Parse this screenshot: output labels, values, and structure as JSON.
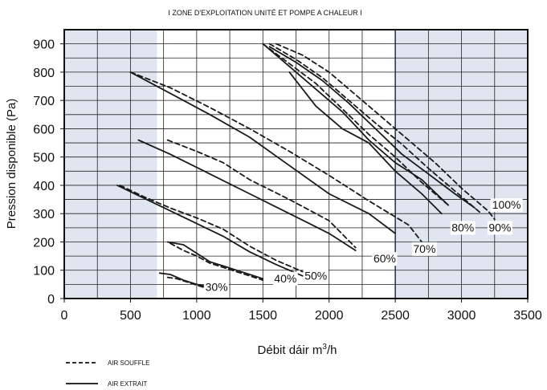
{
  "chart_data": {
    "type": "line",
    "title": "I ZONE D'EXPLOITATION UNITÉ ET POMPE A CHALEUR  I",
    "xlabel": "Débit dáir m³/h",
    "ylabel": "Pression disponible (Pa)",
    "xlim": [
      0,
      3500
    ],
    "ylim": [
      0,
      950
    ],
    "xticks": [
      "0",
      "500",
      "1000",
      "1500",
      "2000",
      "2500",
      "3000",
      "3500"
    ],
    "yticks": [
      "0",
      "100",
      "200",
      "300",
      "400",
      "500",
      "600",
      "700",
      "800",
      "900"
    ],
    "xtick_values": [
      0,
      500,
      1000,
      1500,
      2000,
      2500,
      3000,
      3500
    ],
    "ytick_values": [
      0,
      100,
      200,
      300,
      400,
      500,
      600,
      700,
      800,
      900
    ],
    "grid": true,
    "shaded_zones": [
      [
        0,
        700
      ],
      [
        2500,
        3500
      ]
    ],
    "zone_color": "#dfe6f0",
    "legend_position": "bottom-left",
    "legend": [
      {
        "style": "dashed",
        "label": "AIR SOUFFLE"
      },
      {
        "style": "solid",
        "label": "AIR EXTRAIT"
      }
    ],
    "series": [
      {
        "label": "30%",
        "label_at": [
          1150,
          30
        ],
        "style": "solid",
        "x": [
          720,
          800,
          900,
          1000,
          1100
        ],
        "y": [
          90,
          85,
          65,
          50,
          40
        ]
      },
      {
        "label": "30%",
        "style": "dashed",
        "x": [
          780,
          850,
          950,
          1050,
          1100
        ],
        "y": [
          75,
          70,
          55,
          40,
          35
        ]
      },
      {
        "label": "40%",
        "label_at": [
          1670,
          60
        ],
        "style": "solid",
        "x": [
          780,
          900,
          1000,
          1100,
          1200,
          1300,
          1400,
          1500
        ],
        "y": [
          200,
          190,
          160,
          130,
          115,
          100,
          85,
          70
        ]
      },
      {
        "label": "40%",
        "style": "dashed",
        "x": [
          800,
          900,
          1000,
          1100,
          1200,
          1300,
          1400,
          1500
        ],
        "y": [
          195,
          170,
          150,
          125,
          110,
          95,
          80,
          65
        ]
      },
      {
        "label": "50%",
        "label_at": [
          1900,
          70
        ],
        "style": "solid",
        "x": [
          400,
          600,
          800,
          1000,
          1200,
          1400,
          1600,
          1800
        ],
        "y": [
          400,
          355,
          310,
          265,
          220,
          165,
          120,
          80
        ]
      },
      {
        "label": "50%",
        "style": "dashed",
        "x": [
          420,
          600,
          800,
          1000,
          1200,
          1400,
          1600,
          1800
        ],
        "y": [
          400,
          360,
          320,
          285,
          245,
          185,
          135,
          95
        ]
      },
      {
        "label": "60%",
        "label_at": [
          2420,
          130
        ],
        "style": "solid",
        "x": [
          560,
          800,
          1100,
          1400,
          1700,
          2000,
          2200
        ],
        "y": [
          560,
          510,
          440,
          370,
          300,
          230,
          170
        ]
      },
      {
        "label": "60%",
        "style": "dashed",
        "x": [
          780,
          1000,
          1200,
          1400,
          1700,
          2000,
          2200
        ],
        "y": [
          560,
          520,
          480,
          420,
          350,
          275,
          180
        ]
      },
      {
        "label": "70%",
        "label_at": [
          2720,
          165
        ],
        "style": "solid",
        "x": [
          500,
          800,
          1100,
          1400,
          1700,
          2000,
          2300,
          2500
        ],
        "y": [
          800,
          725,
          650,
          570,
          470,
          370,
          300,
          230
        ]
      },
      {
        "label": "70%",
        "style": "dashed",
        "x": [
          500,
          800,
          1100,
          1400,
          1700,
          2000,
          2300,
          2600,
          2700
        ],
        "y": [
          800,
          745,
          675,
          600,
          520,
          435,
          345,
          260,
          200
        ]
      },
      {
        "label": "80%",
        "label_at": [
          3010,
          240
        ],
        "style": "solid",
        "x": [
          1700,
          1900,
          2100,
          2300,
          2500,
          2700,
          2850
        ],
        "y": [
          800,
          680,
          600,
          550,
          450,
          370,
          300
        ]
      },
      {
        "label": "80%",
        "style": "dashed",
        "x": [
          1500,
          1700,
          1900,
          2100,
          2300,
          2500,
          2700,
          2900
        ],
        "y": [
          900,
          830,
          760,
          670,
          580,
          500,
          410,
          330
        ]
      },
      {
        "label": "90%",
        "label_at": [
          3290,
          240
        ],
        "style": "solid",
        "x": [
          1500,
          1700,
          1900,
          2100,
          2300,
          2500,
          2700,
          2900
        ],
        "y": [
          900,
          820,
          740,
          660,
          560,
          480,
          420,
          330
        ]
      },
      {
        "label": "90%",
        "style": "dashed",
        "x": [
          1550,
          1750,
          1950,
          2150,
          2350,
          2550,
          2750,
          2950,
          3150
        ],
        "y": [
          900,
          845,
          780,
          700,
          620,
          545,
          460,
          380,
          300
        ]
      },
      {
        "label": "100%",
        "label_at": [
          3340,
          320
        ],
        "style": "solid",
        "x": [
          1550,
          1750,
          1950,
          2150,
          2350,
          2550,
          2750,
          2950,
          3100
        ],
        "y": [
          890,
          835,
          770,
          690,
          600,
          510,
          440,
          370,
          320
        ]
      },
      {
        "label": "100%",
        "style": "dashed",
        "x": [
          1600,
          1800,
          2000,
          2200,
          2400,
          2600,
          2800,
          3000,
          3200,
          3250
        ],
        "y": [
          900,
          860,
          800,
          720,
          640,
          560,
          480,
          390,
          310,
          280
        ]
      }
    ]
  }
}
